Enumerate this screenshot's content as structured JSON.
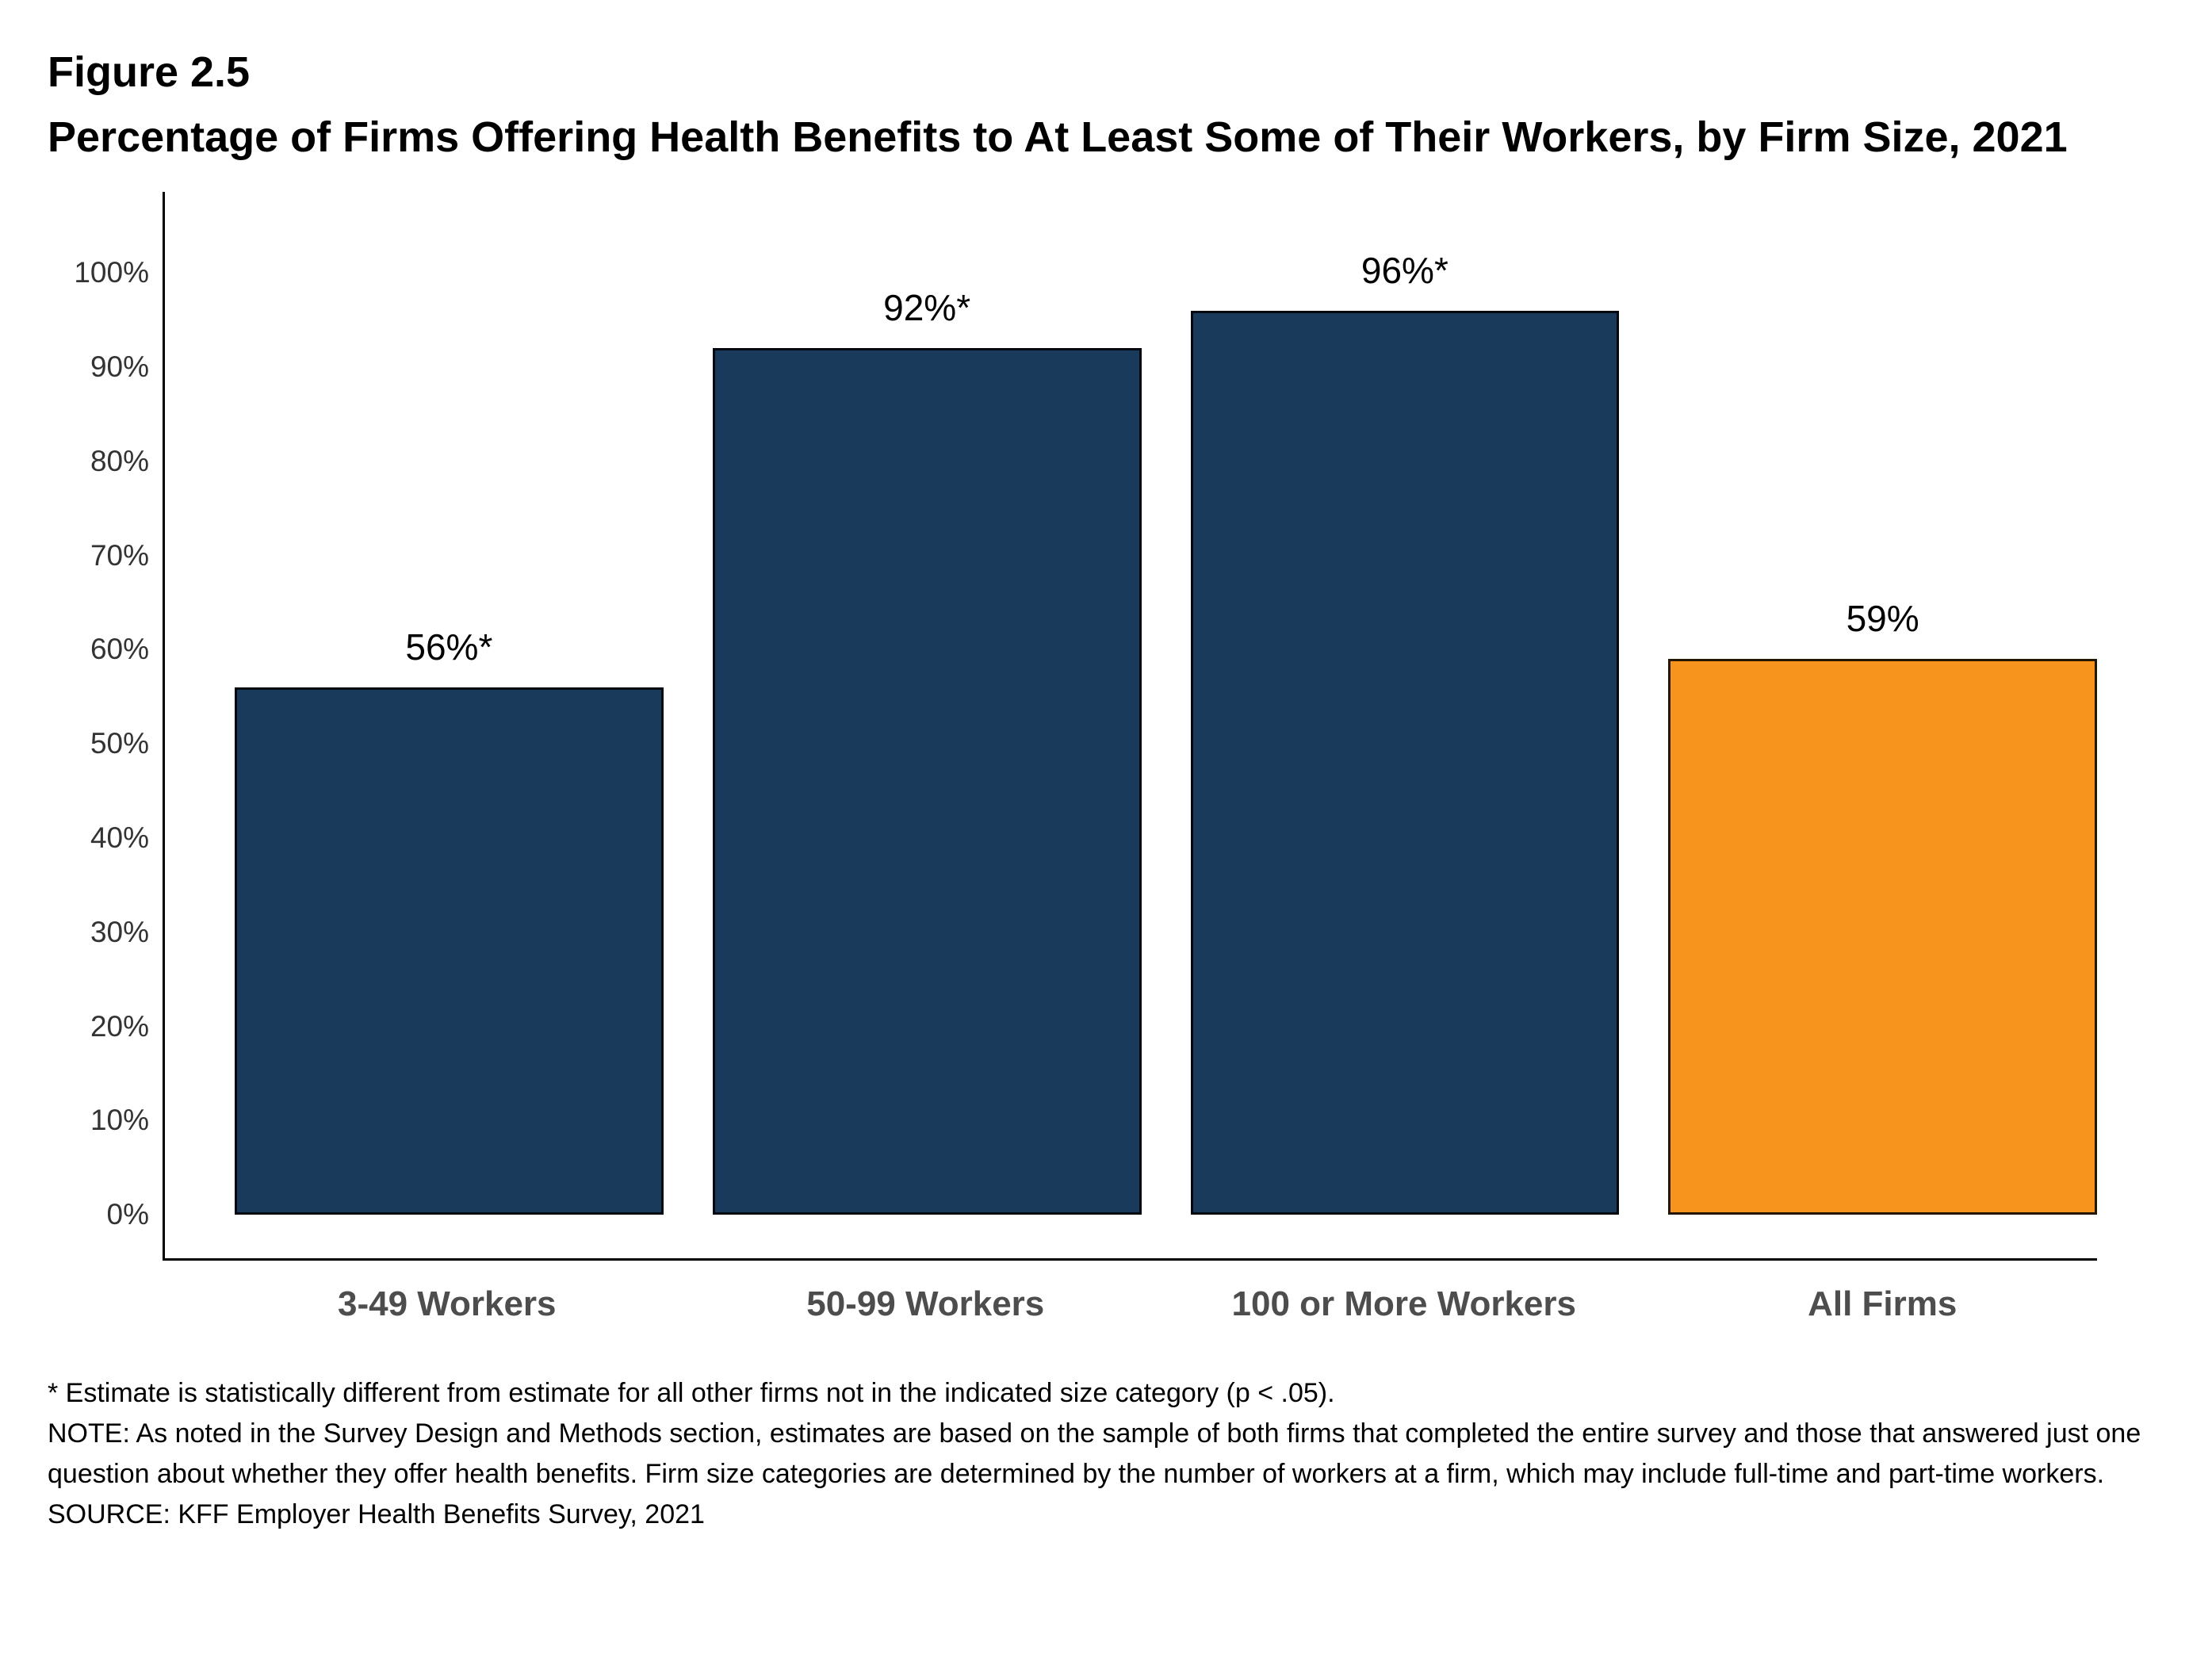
{
  "figure": {
    "number": "Figure 2.5",
    "title": "Percentage of Firms Offering Health Benefits to At Least Some of Their Workers, by Firm Size, 2021"
  },
  "chart_data": {
    "type": "bar",
    "title": "Percentage of Firms Offering Health Benefits to At Least Some of Their Workers, by Firm Size, 2021",
    "categories": [
      "3-49 Workers",
      "50-99 Workers",
      "100 or More Workers",
      "All Firms"
    ],
    "values": [
      56,
      92,
      96,
      59
    ],
    "value_labels": [
      "56%*",
      "92%*",
      "96%*",
      "59%"
    ],
    "bar_colors": [
      "#1A3A5C",
      "#1A3A5C",
      "#1A3A5C",
      "#F7941D"
    ],
    "xlabel": "",
    "ylabel": "",
    "ylim": [
      0,
      100
    ],
    "ytick_values": [
      0,
      10,
      20,
      30,
      40,
      50,
      60,
      70,
      80,
      90,
      100
    ],
    "ytick_labels": [
      "0%",
      "10%",
      "20%",
      "30%",
      "40%",
      "50%",
      "60%",
      "70%",
      "80%",
      "90%",
      "100%"
    ],
    "grid": false,
    "legend": "none",
    "colors": {
      "navy": "#1A3A5C",
      "orange": "#F7941D",
      "axis": "#000000",
      "x_label_text": "#4d4d4d"
    }
  },
  "footnotes": {
    "asterisk": "* Estimate is statistically different from estimate for all other firms not in the indicated size category (p < .05).",
    "note": "NOTE: As noted in the Survey Design and Methods section, estimates are based on the sample of both firms that completed the entire survey and those that answered just one question about whether they offer health benefits. Firm size categories are determined by the number of workers at a firm, which may include full-time and part-time workers.",
    "source": "SOURCE: KFF Employer Health Benefits Survey, 2021"
  }
}
